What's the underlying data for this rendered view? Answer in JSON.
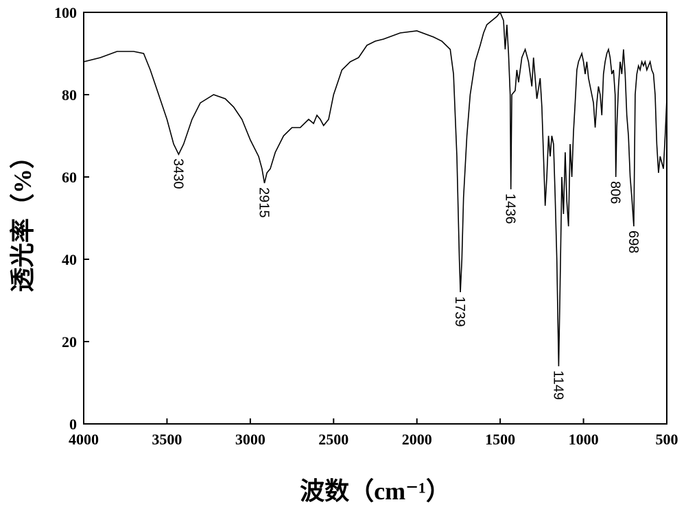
{
  "chart_data": {
    "type": "line",
    "x_label": "波数（cm⁻¹）",
    "y_label": "透光率（%）",
    "xlim": [
      4000,
      500
    ],
    "xticks": [
      4000,
      3500,
      3000,
      2500,
      2000,
      1500,
      1000,
      500
    ],
    "ylim": [
      0,
      100
    ],
    "yticks": [
      0,
      20,
      40,
      60,
      80,
      100
    ],
    "annotations": [
      3430,
      2915,
      1739,
      1436,
      1149,
      806,
      698
    ],
    "series": [
      {
        "color": "#000000",
        "x": [
          4000,
          3900,
          3800,
          3700,
          3640,
          3600,
          3550,
          3500,
          3460,
          3430,
          3400,
          3350,
          3300,
          3220,
          3150,
          3100,
          3050,
          3000,
          2950,
          2930,
          2915,
          2900,
          2880,
          2850,
          2800,
          2750,
          2700,
          2650,
          2620,
          2600,
          2580,
          2560,
          2530,
          2500,
          2450,
          2400,
          2350,
          2300,
          2250,
          2200,
          2100,
          2000,
          1900,
          1850,
          1800,
          1780,
          1760,
          1745,
          1739,
          1730,
          1720,
          1700,
          1680,
          1650,
          1620,
          1600,
          1580,
          1550,
          1520,
          1500,
          1480,
          1470,
          1460,
          1450,
          1440,
          1436,
          1430,
          1410,
          1400,
          1390,
          1370,
          1350,
          1330,
          1310,
          1300,
          1280,
          1260,
          1250,
          1240,
          1230,
          1220,
          1210,
          1200,
          1190,
          1180,
          1170,
          1160,
          1149,
          1140,
          1130,
          1120,
          1110,
          1100,
          1090,
          1080,
          1070,
          1060,
          1050,
          1040,
          1030,
          1020,
          1010,
          1000,
          990,
          980,
          970,
          960,
          950,
          940,
          930,
          920,
          910,
          900,
          890,
          880,
          870,
          860,
          850,
          840,
          830,
          820,
          810,
          806,
          800,
          790,
          780,
          770,
          760,
          750,
          740,
          730,
          720,
          710,
          698,
          690,
          680,
          670,
          660,
          650,
          640,
          630,
          620,
          610,
          600,
          590,
          580,
          570,
          560,
          550,
          540,
          520,
          510,
          500
        ],
        "values": [
          88,
          89,
          90.5,
          90.5,
          90,
          86,
          80,
          74,
          68,
          65.5,
          68,
          74,
          78,
          80,
          79,
          77,
          74,
          69,
          65,
          62,
          58.5,
          61,
          62,
          66,
          70,
          72,
          72,
          74,
          73,
          75,
          74,
          72.5,
          74,
          80,
          86,
          88,
          89,
          92,
          93,
          93.5,
          95,
          95.5,
          94,
          93,
          91,
          85,
          65,
          40,
          32,
          40,
          55,
          70,
          80,
          88,
          92,
          95,
          97,
          98,
          99,
          100,
          98,
          91,
          97,
          90,
          80,
          57,
          80,
          81,
          86,
          83,
          89,
          91,
          88,
          82,
          89,
          79,
          84,
          77,
          65,
          53,
          60,
          70,
          65,
          70,
          68,
          55,
          40,
          14,
          35,
          60,
          51,
          66,
          54,
          48,
          68,
          60,
          71,
          78,
          86,
          88,
          89,
          90,
          88,
          85,
          88,
          84,
          82,
          80,
          78,
          72,
          78,
          82,
          80,
          75,
          85,
          88,
          90,
          91,
          89,
          85,
          86,
          80,
          60,
          72,
          82,
          88,
          85,
          91,
          85,
          75,
          70,
          60,
          55,
          48,
          80,
          85,
          87,
          86,
          88,
          87,
          88,
          86,
          87,
          88,
          86,
          85,
          80,
          68,
          61,
          65,
          62,
          70,
          79
        ]
      }
    ]
  }
}
